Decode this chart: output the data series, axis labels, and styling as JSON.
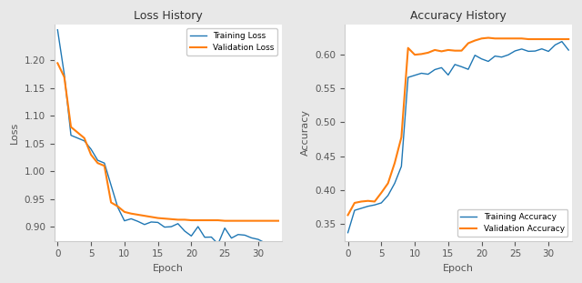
{
  "title_loss": "Loss History",
  "title_acc": "Accuracy History",
  "xlabel": "Epoch",
  "ylabel_loss": "Loss",
  "ylabel_acc": "Accuracy",
  "color_train": "#1f77b4",
  "color_val": "#ff7f0e",
  "legend_loss": [
    "Training Loss",
    "Validation Loss"
  ],
  "legend_acc": [
    "Training Accuracy",
    "Validation Accuracy"
  ],
  "epochs": 34,
  "train_loss": [
    1.255,
    1.175,
    1.065,
    1.06,
    1.055,
    1.04,
    1.02,
    1.015,
    0.975,
    0.942,
    0.912,
    0.907,
    0.91,
    0.908,
    0.906,
    0.91,
    0.903,
    0.905,
    0.899,
    0.895,
    0.892,
    0.898,
    0.885,
    0.883,
    0.878,
    0.9,
    0.886,
    0.882,
    0.888,
    0.881,
    0.879,
    0.876,
    0.872,
    0.871
  ],
  "val_loss": [
    1.195,
    1.17,
    1.08,
    1.07,
    1.06,
    1.03,
    1.015,
    1.01,
    0.944,
    0.937,
    0.927,
    0.924,
    0.922,
    0.92,
    0.918,
    0.916,
    0.915,
    0.914,
    0.913,
    0.913,
    0.912,
    0.912,
    0.912,
    0.912,
    0.912,
    0.911,
    0.911,
    0.911,
    0.911,
    0.911,
    0.911,
    0.911,
    0.911,
    0.911
  ],
  "train_acc": [
    0.337,
    0.37,
    0.373,
    0.376,
    0.378,
    0.381,
    0.392,
    0.41,
    0.435,
    0.562,
    0.566,
    0.572,
    0.578,
    0.578,
    0.576,
    0.577,
    0.579,
    0.583,
    0.586,
    0.592,
    0.593,
    0.596,
    0.594,
    0.597,
    0.6,
    0.606,
    0.603,
    0.608,
    0.609,
    0.611,
    0.607,
    0.611,
    0.613,
    0.603
  ],
  "val_acc": [
    0.363,
    0.381,
    0.383,
    0.384,
    0.383,
    0.396,
    0.41,
    0.44,
    0.478,
    0.61,
    0.6,
    0.601,
    0.603,
    0.607,
    0.605,
    0.607,
    0.606,
    0.606,
    0.617,
    0.621,
    0.624,
    0.625,
    0.624,
    0.624,
    0.624,
    0.624,
    0.624,
    0.623,
    0.623,
    0.623,
    0.623,
    0.623,
    0.623,
    0.623
  ],
  "loss_ylim": [
    0.875,
    1.265
  ],
  "acc_ylim": [
    0.325,
    0.645
  ],
  "loss_yticks": [
    0.9,
    0.95,
    1.0,
    1.05,
    1.1,
    1.15,
    1.2
  ],
  "acc_yticks": [
    0.35,
    0.4,
    0.45,
    0.5,
    0.55,
    0.6
  ],
  "xlim": [
    -0.5,
    33.5
  ],
  "xticks": [
    0,
    5,
    10,
    15,
    20,
    25,
    30
  ],
  "fig_bgcolor": "#e8e8e8",
  "axes_bgcolor": "#ffffff",
  "linewidth_train": 1.0,
  "linewidth_val": 1.5
}
